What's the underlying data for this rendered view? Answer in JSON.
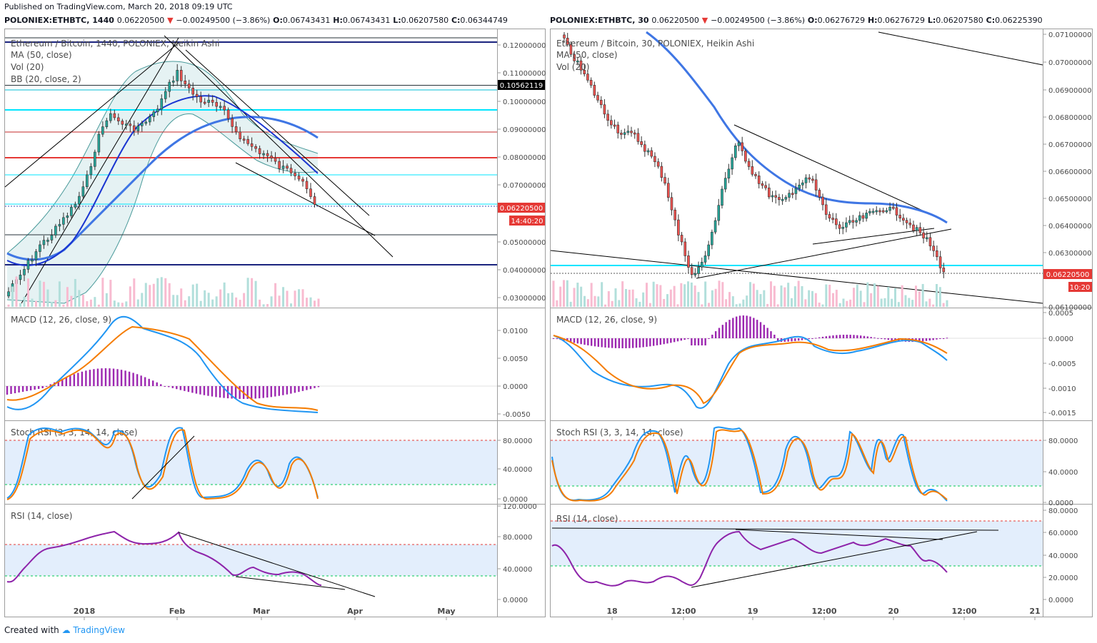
{
  "published": "Published on TradingView.com, March 20, 2018 09:19 UTC",
  "footer": {
    "created_with": "Created with",
    "brand": "TradingView"
  },
  "left": {
    "symbol": "POLONIEX:ETHBTC, 1440",
    "price": "0.06220500",
    "change": "−0.00249500 (−3.86%)",
    "o": "0.06743431",
    "h": "0.06743431",
    "l": "0.06207580",
    "c": "0.06344749",
    "legend": [
      "Ethereum / Bitcoin, 1440, POLONIEX, Heikin Ashi",
      "MA (50, close)",
      "Vol (20)",
      "BB (20, close, 2)"
    ],
    "price_axis": [
      "0.12000000",
      "0.11000000",
      "0.10000000",
      "0.09000000",
      "0.08000000",
      "0.07000000",
      "0.05000000",
      "0.04000000",
      "0.03000000"
    ],
    "last_price_label": "0.06220500",
    "countdown": "14:40:20",
    "level_label": "0.10562119",
    "macd_legend": "MACD (12, 26, close, 9)",
    "macd_axis": [
      "0.0100",
      "0.0050",
      "0.0000",
      "-0.0050"
    ],
    "stoch_legend": "Stoch RSI (3, 3, 14, 14, close)",
    "stoch_axis": [
      "80.0000",
      "40.0000",
      "0.0000"
    ],
    "rsi_legend": "RSI (14, close)",
    "rsi_axis": [
      "120.0000",
      "80.0000",
      "40.0000",
      "0.0000"
    ],
    "time_axis": [
      "2018",
      "Feb",
      "Mar",
      "Apr",
      "May"
    ]
  },
  "right": {
    "symbol": "POLONIEX:ETHBTC, 30",
    "price": "0.06220500",
    "change": "−0.00249500 (−3.86%)",
    "o": "0.06276729",
    "h": "0.06276729",
    "l": "0.06207580",
    "c": "0.06225390",
    "legend": [
      "Ethereum / Bitcoin, 30, POLONIEX, Heikin Ashi",
      "MA (50, close)",
      "Vol (20)"
    ],
    "price_axis": [
      "0.07100000",
      "0.07000000",
      "0.06900000",
      "0.06800000",
      "0.06700000",
      "0.06600000",
      "0.06500000",
      "0.06400000",
      "0.06300000",
      "0.06100000"
    ],
    "last_price_label": "0.06220500",
    "countdown": "10:20",
    "macd_legend": "MACD (12, 26, close, 9)",
    "macd_axis": [
      "0.0005",
      "0.0000",
      "-0.0005",
      "-0.0010",
      "-0.0015"
    ],
    "stoch_legend": "Stoch RSI (3, 3, 14, 14, close)",
    "stoch_axis": [
      "80.0000",
      "40.0000",
      "0.0000"
    ],
    "rsi_legend": "RSI (14, close)",
    "rsi_axis": [
      "80.0000",
      "60.0000",
      "40.0000",
      "20.0000",
      "0.0000"
    ],
    "time_axis": [
      "18",
      "12:00",
      "19",
      "12:00",
      "20",
      "12:00",
      "21"
    ]
  },
  "colors": {
    "up": "#26a69a",
    "down": "#ef5350",
    "ma": "#3f76e4",
    "macd": "#2196f3",
    "signal": "#f57c00",
    "hist": "#9c27b0",
    "rsi": "#8e24aa"
  }
}
